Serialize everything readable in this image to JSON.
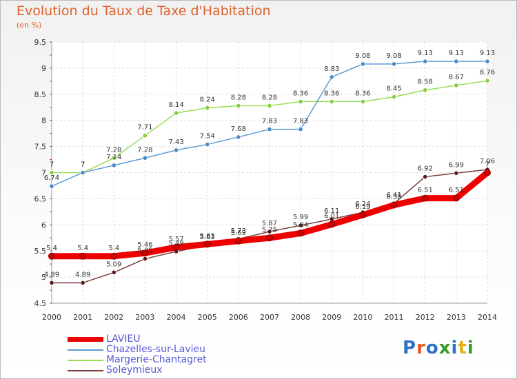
{
  "header": {
    "title": "Evolution du Taux de Taxe d'Habitation",
    "unit": "(en %)"
  },
  "logo": {
    "text": "Proxiti",
    "colors": [
      "#2a73c6",
      "#e05a1e",
      "#2a73c6",
      "#3b9a2b",
      "#2a73c6",
      "#e2b21c",
      "#3b9a2b"
    ]
  },
  "chart_data": {
    "type": "line",
    "title": "Evolution du Taux de Taxe d'Habitation",
    "ylabel": "(en %)",
    "xlabel": "",
    "x": [
      "2000",
      "2001",
      "2002",
      "2003",
      "2004",
      "2005",
      "2006",
      "2007",
      "2008",
      "2009",
      "2010",
      "2011",
      "2012",
      "2013",
      "2014"
    ],
    "ylim": [
      4.5,
      9.5
    ],
    "yticks": [
      "4.5",
      "5",
      "5.5",
      "6",
      "6.5",
      "7",
      "7.5",
      "8",
      "8.5",
      "9",
      "9.5"
    ],
    "grid": true,
    "legend_position": "bottom",
    "series": [
      {
        "name": "LAVIEU",
        "color": "#ee0000",
        "values": [
          5.4,
          5.4,
          5.4,
          5.46,
          5.57,
          5.63,
          5.69,
          5.75,
          5.84,
          6.01,
          6.19,
          6.38,
          6.51,
          6.51,
          7.0
        ],
        "labels": [
          "5.4",
          "5.4",
          "5.4",
          "5.46",
          "5.57",
          "5.63",
          "5.69",
          "5.75",
          "5.84",
          "6.01",
          "6.19",
          "6.38",
          "6.51",
          "6.51",
          "7"
        ]
      },
      {
        "name": "Chazelles-sur-Lavieu",
        "color": "#5b9bd5",
        "values": [
          6.74,
          7.0,
          7.14,
          7.28,
          7.43,
          7.54,
          7.68,
          7.83,
          7.83,
          8.83,
          9.08,
          9.08,
          9.13,
          9.13,
          9.13
        ],
        "labels": [
          "6.74",
          "7",
          "7.14",
          "7.28",
          "7.43",
          "7.54",
          "7.68",
          "7.83",
          "7.83",
          "8.83",
          "9.08",
          "9.08",
          "9.13",
          "9.13",
          "9.13"
        ]
      },
      {
        "name": "Margerie-Chantagret",
        "color": "#99dd55",
        "values": [
          7.0,
          7.0,
          7.28,
          7.71,
          8.14,
          8.24,
          8.28,
          8.28,
          8.36,
          8.36,
          8.36,
          8.45,
          8.58,
          8.67,
          8.76
        ],
        "labels": [
          "7",
          "7",
          "7.28",
          "7.71",
          "8.14",
          "8.24",
          "8.28",
          "8.28",
          "8.36",
          "8.36",
          "8.36",
          "8.45",
          "8.58",
          "8.67",
          "8.76"
        ]
      },
      {
        "name": "Soleymieux",
        "color": "#7a3a3a",
        "values": [
          4.89,
          4.89,
          5.09,
          5.35,
          5.49,
          5.61,
          5.73,
          5.87,
          5.99,
          6.11,
          6.24,
          6.41,
          6.92,
          6.99,
          7.06
        ],
        "labels": [
          "4.89",
          "4.89",
          "5.09",
          "5.35",
          "5.49",
          "5.61",
          "5.73",
          "5.87",
          "5.99",
          "6.11",
          "6.24",
          "6.41",
          "6.92",
          "6.99",
          "7.06"
        ]
      }
    ]
  }
}
